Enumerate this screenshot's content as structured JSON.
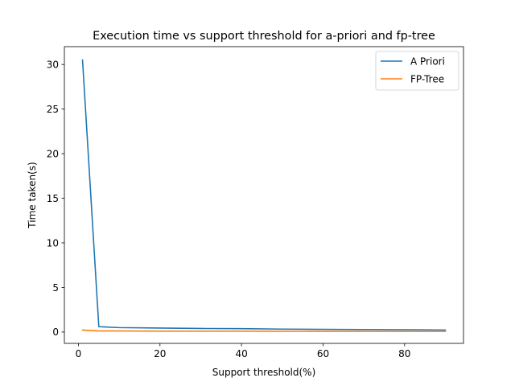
{
  "chart_data": {
    "type": "line",
    "title": "Execution time vs support threshold for a-priori and fp-tree",
    "xlabel": "Support threshold(%)",
    "ylabel": "Time taken(s)",
    "xlim": [
      -3.45,
      94.45
    ],
    "ylim": [
      -1.27,
      32.0
    ],
    "xticks": [
      0,
      20,
      40,
      60,
      80
    ],
    "yticks": [
      0,
      5,
      10,
      15,
      20,
      25,
      30
    ],
    "grid": false,
    "legend_position": "upper right",
    "series": [
      {
        "name": "A Priori",
        "color": "#1f77b4",
        "x": [
          1,
          5,
          10,
          20,
          30,
          40,
          50,
          60,
          70,
          80,
          90
        ],
        "y": [
          30.5,
          0.6,
          0.5,
          0.45,
          0.4,
          0.38,
          0.33,
          0.3,
          0.28,
          0.26,
          0.23
        ]
      },
      {
        "name": "FP-Tree",
        "color": "#ff7f0e",
        "x": [
          1,
          5,
          10,
          20,
          30,
          40,
          50,
          60,
          70,
          80,
          90
        ],
        "y": [
          0.22,
          0.12,
          0.12,
          0.1,
          0.1,
          0.1,
          0.09,
          0.08,
          0.08,
          0.07,
          0.07
        ]
      }
    ]
  }
}
